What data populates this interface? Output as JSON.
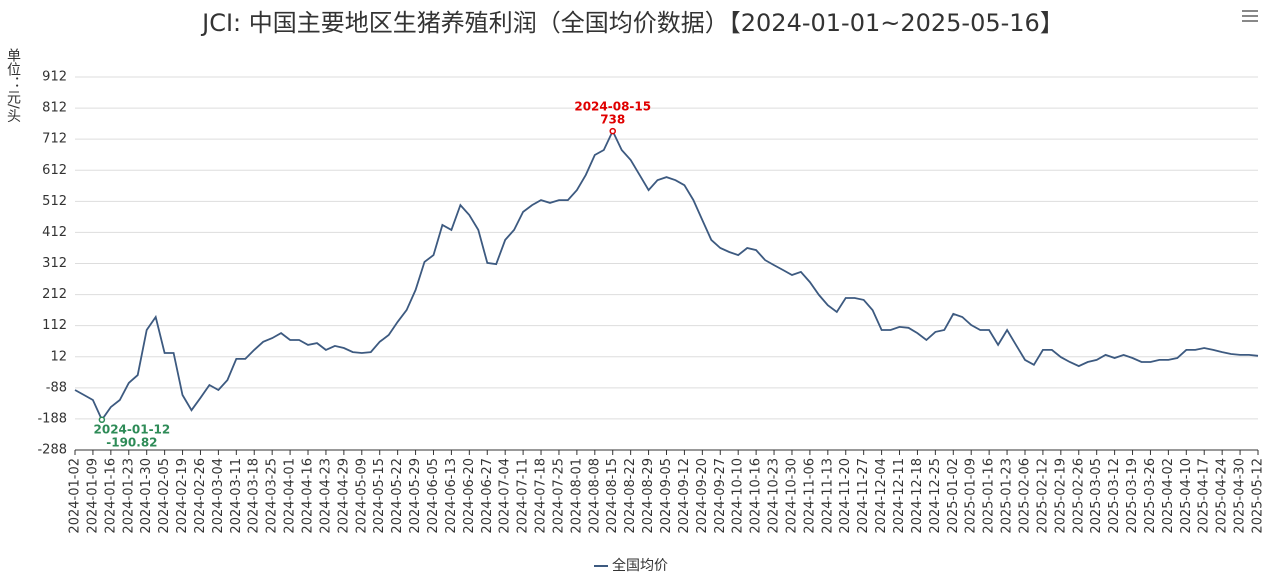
{
  "chart_data": {
    "type": "line",
    "title": "JCI: 中国主要地区生猪养殖利润（全国均价数据）【2024-01-01~2025-05-16】",
    "y_label": "单位：元/头",
    "categories": [
      "2024-01-02",
      null,
      "2024-01-09",
      null,
      "2024-01-16",
      null,
      "2024-01-23",
      null,
      "2024-01-30",
      null,
      "2024-02-05",
      null,
      "2024-02-19",
      null,
      "2024-02-26",
      null,
      "2024-03-04",
      null,
      "2024-03-11",
      null,
      "2024-03-18",
      null,
      "2024-03-25",
      null,
      "2024-04-01",
      null,
      "2024-04-16",
      null,
      "2024-04-23",
      null,
      "2024-04-29",
      null,
      "2024-05-09",
      null,
      "2024-05-15",
      null,
      "2024-05-22",
      null,
      "2024-05-29",
      null,
      "2024-06-05",
      null,
      "2024-06-13",
      null,
      "2024-06-20",
      null,
      "2024-06-27",
      null,
      "2024-07-04",
      null,
      "2024-07-11",
      null,
      "2024-07-18",
      null,
      "2024-07-25",
      null,
      "2024-08-01",
      null,
      "2024-08-08",
      null,
      "2024-08-15",
      null,
      "2024-08-22",
      null,
      "2024-08-29",
      null,
      "2024-09-05",
      null,
      "2024-09-12",
      null,
      "2024-09-20",
      null,
      "2024-09-27",
      null,
      "2024-10-10",
      null,
      "2024-10-16",
      null,
      "2024-10-23",
      null,
      "2024-10-30",
      null,
      "2024-11-06",
      null,
      "2024-11-13",
      null,
      "2024-11-20",
      null,
      "2024-11-27",
      null,
      "2024-12-04",
      null,
      "2024-12-11",
      null,
      "2024-12-18",
      null,
      "2024-12-25",
      null,
      "2025-01-02",
      null,
      "2025-01-09",
      null,
      "2025-01-16",
      null,
      "2025-01-23",
      null,
      "2025-02-06",
      null,
      "2025-02-12",
      null,
      "2025-02-19",
      null,
      "2025-02-26",
      null,
      "2025-03-05",
      null,
      "2025-03-12",
      null,
      "2025-03-19",
      null,
      "2025-03-26",
      null,
      "2025-04-02",
      null,
      "2025-04-10",
      null,
      "2025-04-17",
      null,
      "2025-04-24",
      null,
      "2025-04-30",
      null,
      "2025-05-12"
    ],
    "series": [
      {
        "name": "全国均价",
        "color": "#3d5a80",
        "values": [
          -95,
          -111,
          -127,
          -190.82,
          -150,
          -127,
          -72,
          -47,
          98,
          140,
          24,
          24,
          -111,
          -160,
          -120,
          -79,
          -95,
          -63,
          5,
          5,
          34,
          60,
          72,
          88,
          66,
          66,
          50,
          56,
          34,
          47,
          40,
          27,
          24,
          27,
          60,
          82,
          124,
          162,
          227,
          317,
          339,
          436,
          420,
          500,
          468,
          420,
          314,
          310,
          388,
          420,
          478,
          500,
          516,
          507,
          516,
          516,
          548,
          597,
          661,
          677,
          738,
          677,
          645,
          597,
          548,
          580,
          590,
          580,
          564,
          516,
          452,
          388,
          362,
          349,
          339,
          362,
          355,
          323,
          307,
          291,
          275,
          285,
          252,
          211,
          178,
          156,
          201,
          201,
          195,
          162,
          98,
          98,
          108,
          105,
          88,
          66,
          92,
          98,
          150,
          140,
          114,
          98,
          98,
          50,
          98,
          50,
          2,
          -14,
          34,
          34,
          11,
          -5,
          -18,
          -5,
          2,
          18,
          8,
          18,
          8,
          -5,
          -5,
          2,
          2,
          8,
          34,
          34,
          40,
          34,
          27,
          21,
          18,
          18,
          15
        ]
      }
    ],
    "annotations": [
      {
        "label": "2024-08-15",
        "value": 738,
        "color": "#e00000"
      },
      {
        "label": "2024-01-12",
        "value": -190.82,
        "color": "#2e8b57"
      }
    ],
    "ylim": [
      -288,
      912
    ],
    "yticks": [
      -288,
      -188,
      -88,
      12,
      112,
      212,
      312,
      412,
      512,
      612,
      712,
      812,
      912
    ],
    "grid": true
  }
}
